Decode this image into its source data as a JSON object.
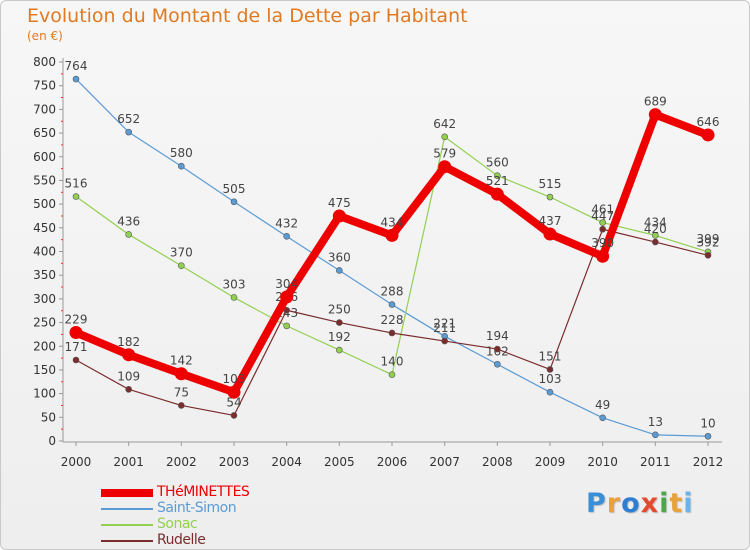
{
  "title": "Evolution du Montant de la Dette par Habitant",
  "subtitle": "(en €)",
  "logo": [
    "P",
    "r",
    "o",
    "x",
    "i",
    "t",
    "i"
  ],
  "logo_colors": [
    "#3b8fd6",
    "#e8a23a",
    "#2e7fd0",
    "#e44a2e",
    "#4aa84a",
    "#e8a23a",
    "#6bb3e8"
  ],
  "chart_data": {
    "type": "line",
    "title": "Evolution du Montant de la Dette par Habitant",
    "ylabel": "(en €)",
    "xlabel": "",
    "x": [
      "2000",
      "2001",
      "2002",
      "2003",
      "2004",
      "2005",
      "2006",
      "2007",
      "2008",
      "2009",
      "2010",
      "2011",
      "2012"
    ],
    "ylim": [
      0,
      800
    ],
    "yticks": [
      0,
      50,
      100,
      150,
      200,
      250,
      300,
      350,
      400,
      450,
      500,
      550,
      600,
      650,
      700,
      750,
      800
    ],
    "grid": false,
    "legend_position": "bottom-left",
    "series": [
      {
        "name": "Saint-Simon",
        "color": "#5b9bd5",
        "values": [
          764,
          652,
          580,
          505,
          432,
          360,
          288,
          221,
          162,
          103,
          49,
          13,
          10
        ],
        "labels": [
          "764",
          "652",
          "580",
          "505",
          "432",
          "360",
          "288",
          "221",
          "162",
          "103",
          "49",
          "13",
          "10"
        ]
      },
      {
        "name": "Sonac",
        "color": "#92d050",
        "values": [
          516,
          436,
          370,
          303,
          243,
          192,
          140,
          642,
          560,
          515,
          461,
          434,
          399
        ],
        "labels": [
          "516",
          "436",
          "370",
          "303",
          "243",
          "192",
          "140",
          "642",
          "560",
          "515",
          "461",
          "434",
          "399"
        ]
      },
      {
        "name": "Rudelle",
        "color": "#7b2c2c",
        "values": [
          171,
          109,
          75,
          54,
          276,
          250,
          228,
          211,
          194,
          151,
          447,
          420,
          392
        ],
        "labels": [
          "171",
          "109",
          "75",
          "54",
          "276",
          "250",
          "228",
          "211",
          "194",
          "151",
          "447",
          "420",
          "392"
        ]
      },
      {
        "name": "THéMINETTES",
        "color": "#ee0000",
        "values": [
          229,
          182,
          142,
          103,
          304,
          475,
          434,
          579,
          521,
          437,
          390,
          689,
          646
        ],
        "labels": [
          "229",
          "182",
          "142",
          "103",
          "304",
          "475",
          "434",
          "579",
          "521",
          "437",
          "390",
          "689",
          "646"
        ]
      }
    ]
  }
}
